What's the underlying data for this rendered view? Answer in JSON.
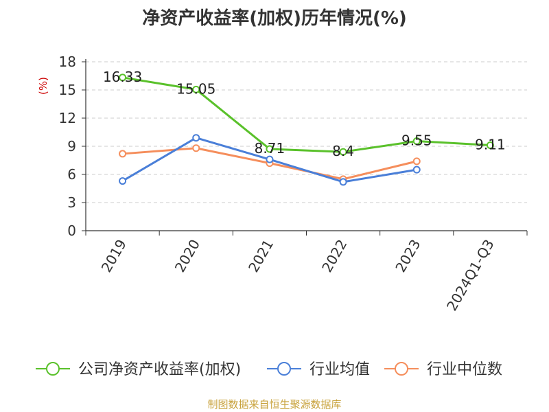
{
  "title": "净资产收益率(加权)历年情况(%)",
  "source": "制图数据来自恒生聚源数据库",
  "colors": {
    "axis": "#333333",
    "grid": "#cccccc",
    "unit": "#cc0000"
  },
  "chart_data": {
    "type": "line",
    "title": "净资产收益率(加权)历年情况(%)",
    "ylabel": "(%)",
    "categories": [
      "2019",
      "2020",
      "2021",
      "2022",
      "2023",
      "2024Q1-Q3"
    ],
    "ylim": [
      0,
      18
    ],
    "yticks": [
      0,
      3,
      6,
      9,
      12,
      15,
      18
    ],
    "grid": true,
    "legend_position": "bottom",
    "series": [
      {
        "name": "公司净资产收益率(加权)",
        "color": "#5ac12b",
        "values": [
          16.33,
          15.05,
          8.71,
          8.4,
          9.55,
          9.11
        ],
        "labels": [
          "16.33",
          "15.05",
          "8.71",
          "8.4",
          "9.55",
          "9.11"
        ]
      },
      {
        "name": "行业均值",
        "color": "#4a7fd8",
        "values": [
          5.3,
          9.9,
          7.6,
          5.2,
          6.5,
          null
        ]
      },
      {
        "name": "行业中位数",
        "color": "#f58e5c",
        "values": [
          8.2,
          8.8,
          7.2,
          5.5,
          7.4,
          null
        ]
      }
    ]
  }
}
